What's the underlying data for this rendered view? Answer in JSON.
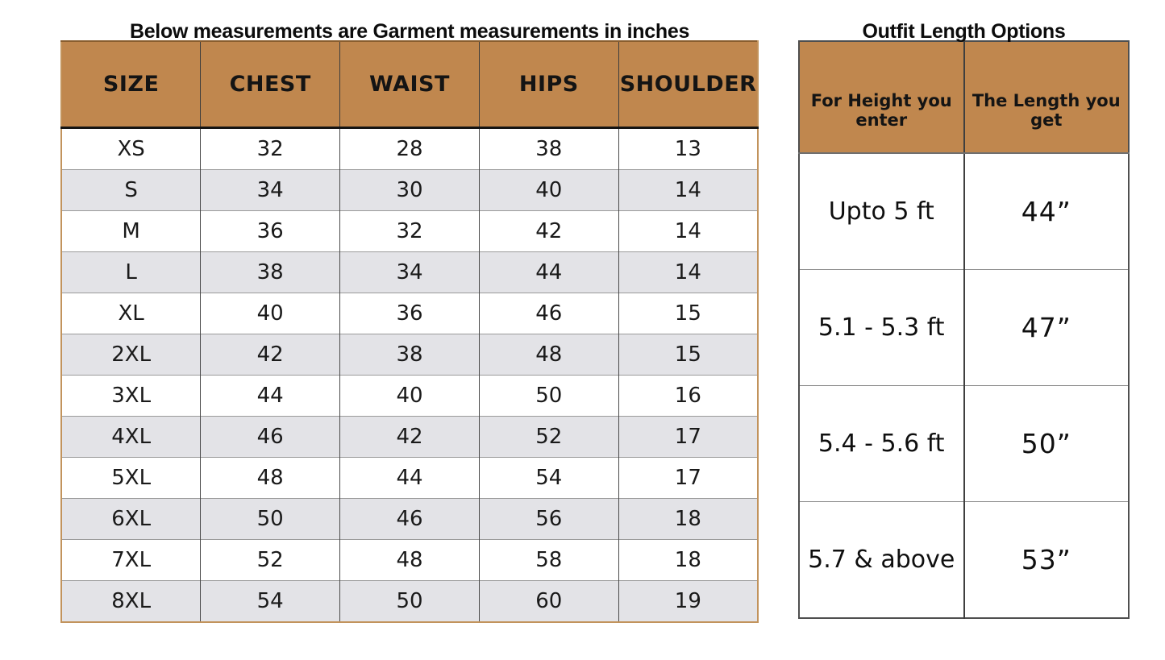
{
  "left_table": {
    "title": "Below measurements are Garment measurements in inches",
    "headers": [
      "SIZE",
      "CHEST",
      "WAIST",
      "HIPS",
      "SHOULDER"
    ],
    "rows": [
      [
        "XS",
        "32",
        "28",
        "38",
        "13"
      ],
      [
        "S",
        "34",
        "30",
        "40",
        "14"
      ],
      [
        "M",
        "36",
        "32",
        "42",
        "14"
      ],
      [
        "L",
        "38",
        "34",
        "44",
        "14"
      ],
      [
        "XL",
        "40",
        "36",
        "46",
        "15"
      ],
      [
        "2XL",
        "42",
        "38",
        "48",
        "15"
      ],
      [
        "3XL",
        "44",
        "40",
        "50",
        "16"
      ],
      [
        "4XL",
        "46",
        "42",
        "52",
        "17"
      ],
      [
        "5XL",
        "48",
        "44",
        "54",
        "17"
      ],
      [
        "6XL",
        "50",
        "46",
        "56",
        "18"
      ],
      [
        "7XL",
        "52",
        "48",
        "58",
        "18"
      ],
      [
        "8XL",
        "54",
        "50",
        "60",
        "19"
      ]
    ]
  },
  "right_table": {
    "title": "Outfit Length Options",
    "headers": [
      "For Height you enter",
      "The Length you get"
    ],
    "rows": [
      [
        "Upto 5 ft",
        "44”"
      ],
      [
        "5.1 - 5.3 ft",
        "47”"
      ],
      [
        "5.4 - 5.6 ft",
        "50”"
      ],
      [
        "5.7 & above",
        "53”"
      ]
    ]
  },
  "colors": {
    "header_bg": "#c0874e",
    "alt_row_bg": "#e3e3e7",
    "left_table_border": "#c2935c",
    "right_table_border": "#4f4f4f",
    "text": "#111111"
  }
}
